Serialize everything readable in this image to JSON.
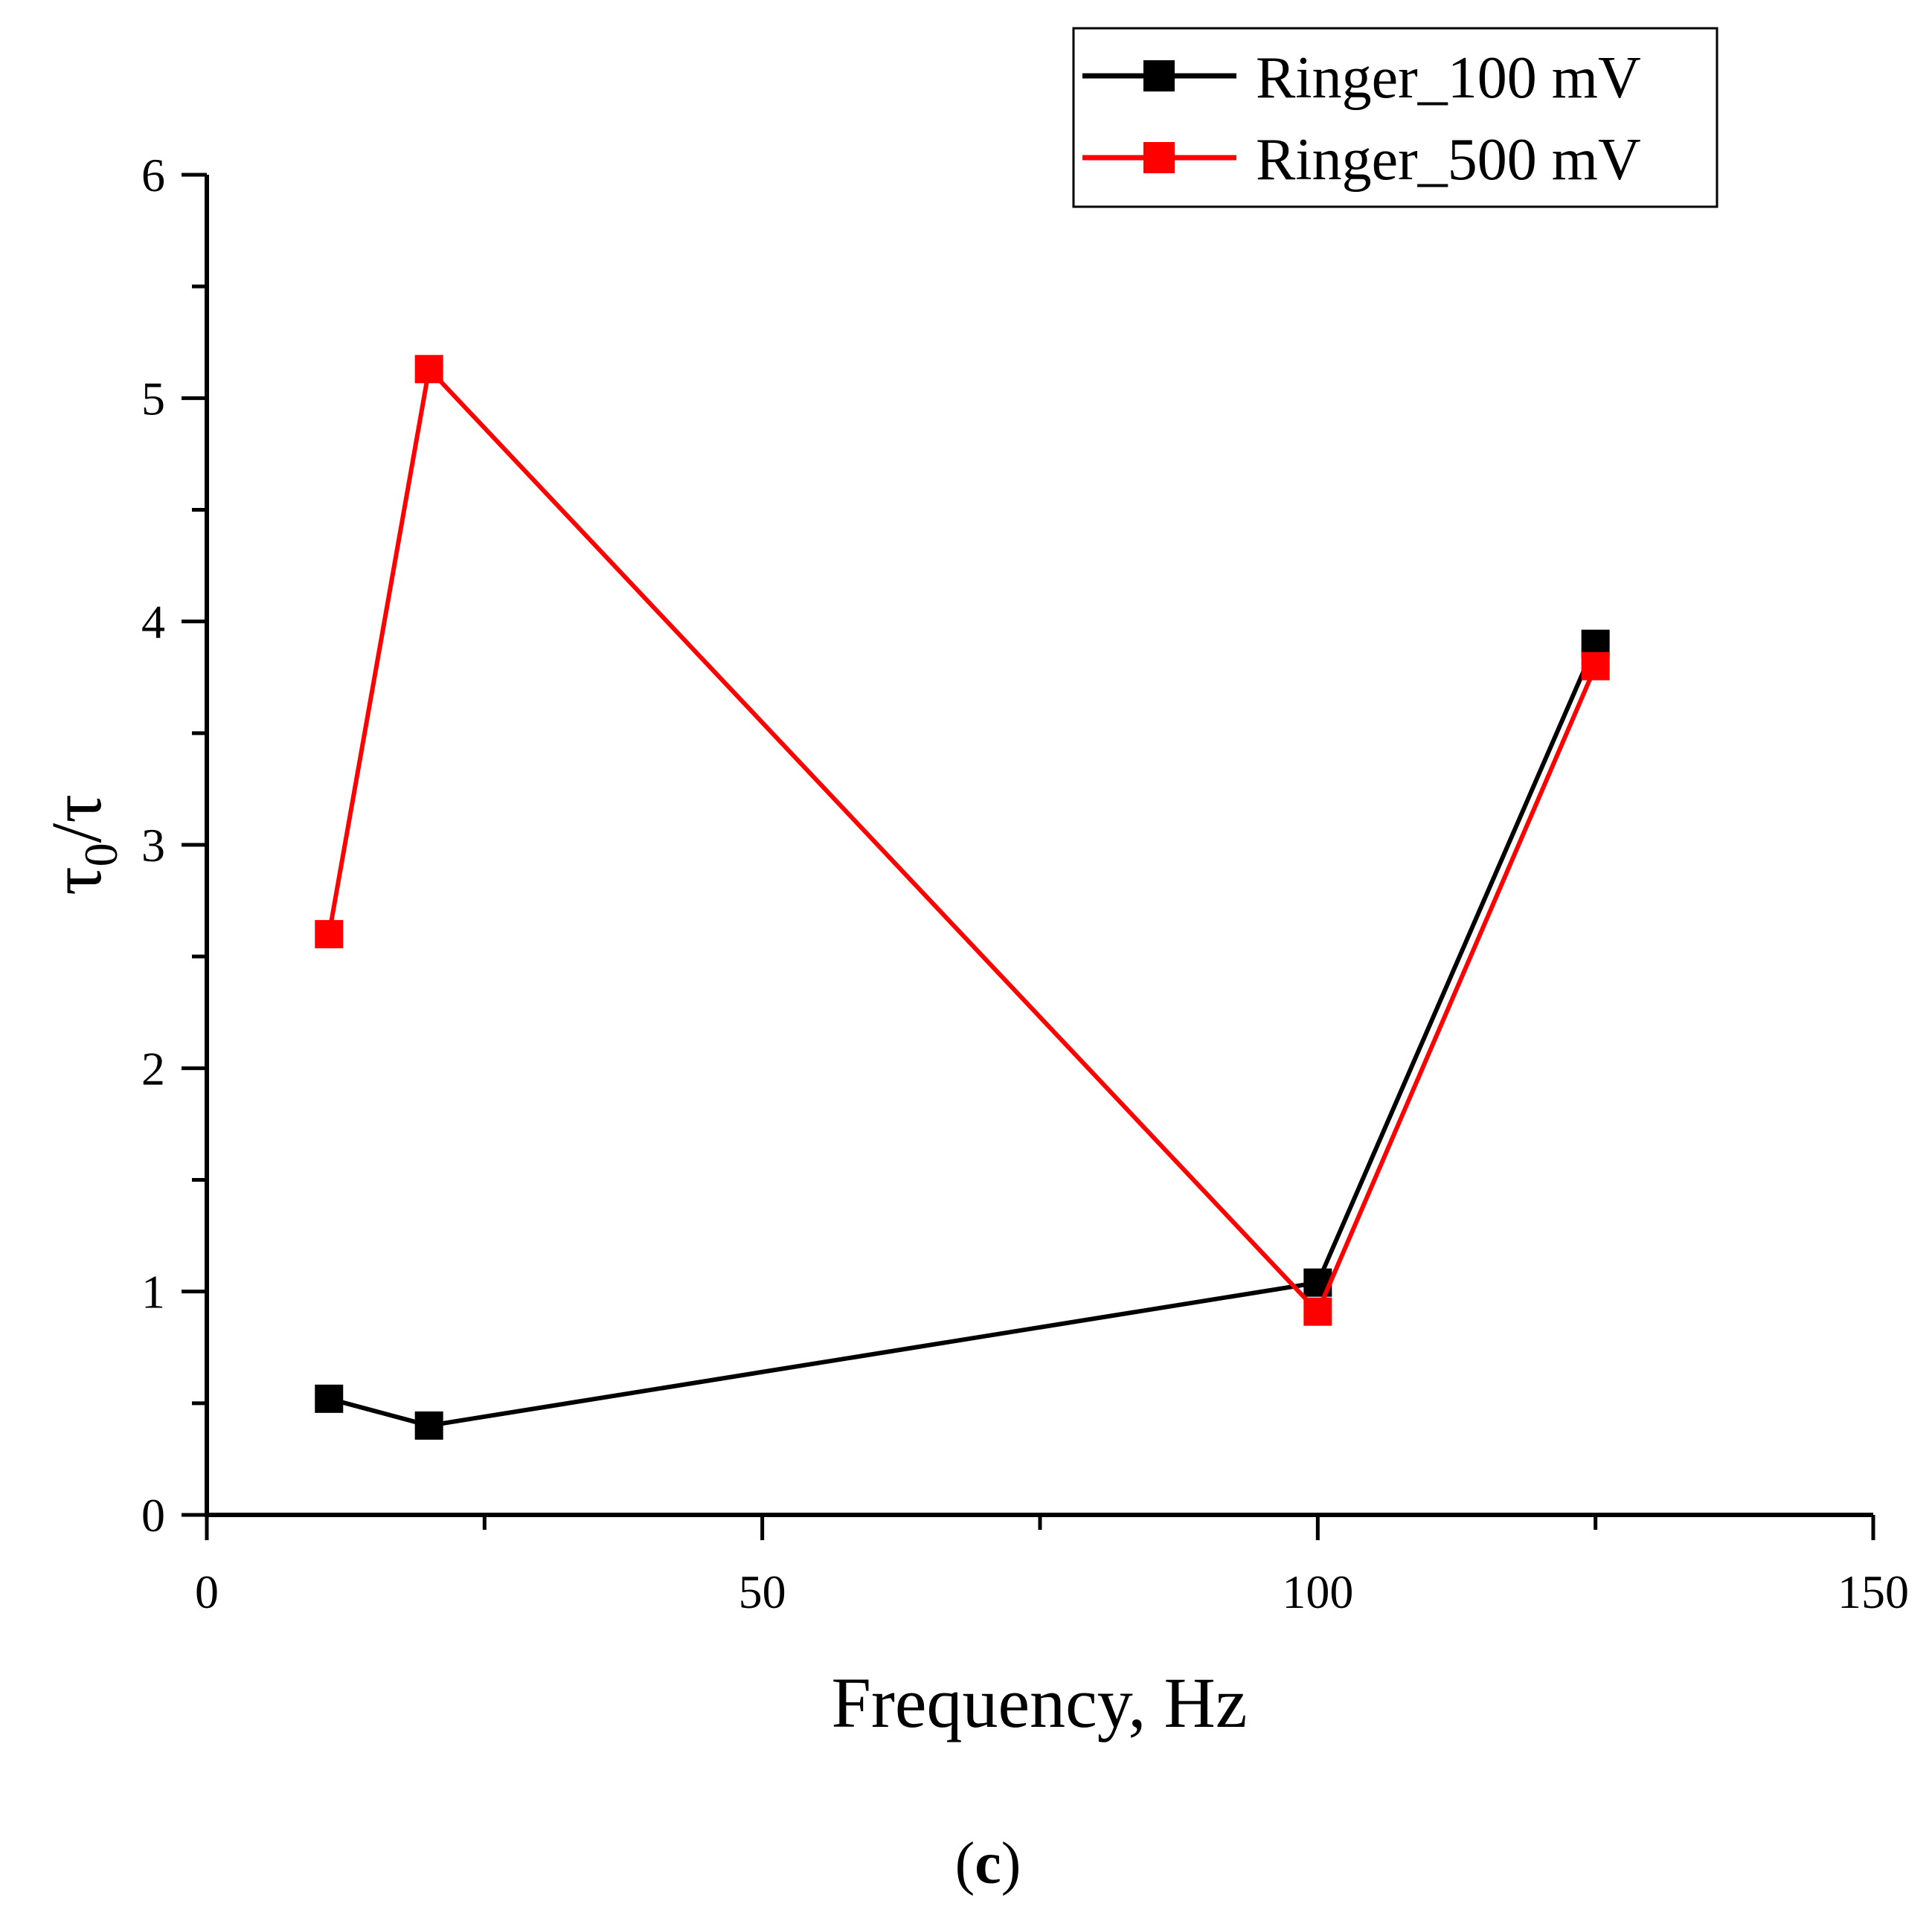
{
  "chart_data": {
    "type": "line",
    "title": "",
    "xlabel": "Frequency, Hz",
    "ylabel": {
      "main": "τ",
      "subscript": "0",
      "suffix": "/τ"
    },
    "xlim": [
      0,
      150
    ],
    "ylim": [
      0,
      6
    ],
    "x_ticks": [
      "0",
      "50",
      "100",
      "150"
    ],
    "y_ticks": [
      "0",
      "1",
      "2",
      "3",
      "4",
      "5",
      "6"
    ],
    "grid": false,
    "legend_position": "top-right",
    "series": [
      {
        "name": "Ringer_100 mV",
        "color": "#000000",
        "marker": "square",
        "x": [
          11,
          20,
          100,
          125
        ],
        "y": [
          0.52,
          0.4,
          1.04,
          3.9
        ]
      },
      {
        "name": "Ringer_500 mV",
        "color": "#ff0000",
        "marker": "square",
        "x": [
          11,
          20,
          100,
          125
        ],
        "y": [
          2.6,
          5.13,
          0.91,
          3.8
        ]
      }
    ],
    "panel_label": {
      "open": "(",
      "letter": "c",
      "close": ")"
    }
  }
}
